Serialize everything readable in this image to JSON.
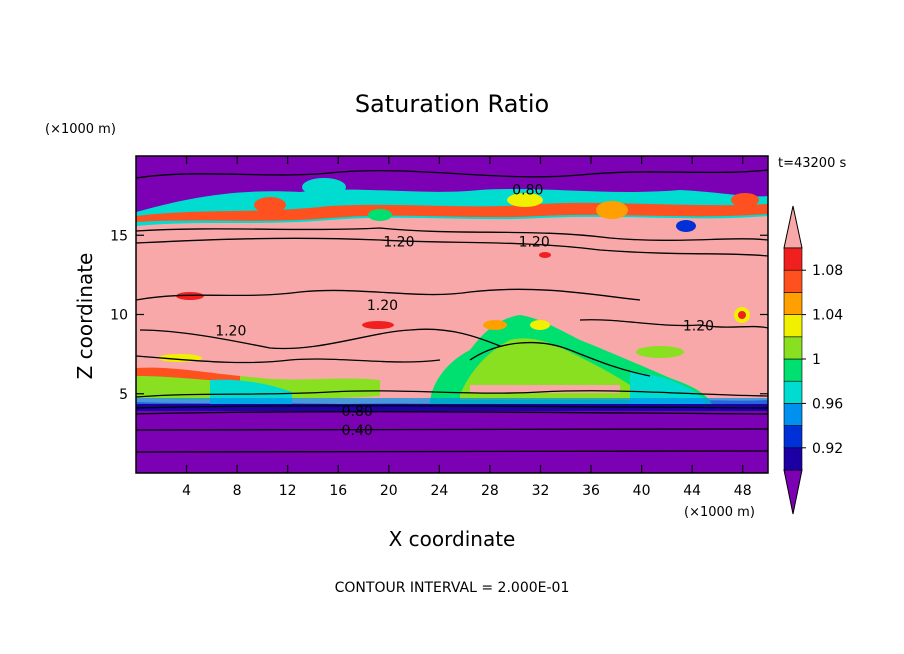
{
  "chart_data": {
    "type": "heatmap",
    "title": "Saturation Ratio",
    "time_label": "t=43200 s",
    "xlabel": "X coordinate",
    "ylabel": "Z coordinate",
    "x_unit": "(×1000 m)",
    "y_unit": "(×1000 m)",
    "xlim": [
      0,
      50
    ],
    "ylim": [
      0,
      20
    ],
    "x_ticks": [
      4,
      8,
      12,
      16,
      20,
      24,
      28,
      32,
      36,
      40,
      44,
      48
    ],
    "y_ticks": [
      5,
      10,
      15
    ],
    "colorbar": {
      "labels": [
        "1.08",
        "1.04",
        "1",
        "0.96",
        "0.92"
      ],
      "levels": [
        0.9,
        0.92,
        0.94,
        0.96,
        0.98,
        1.0,
        1.02,
        1.04,
        1.06,
        1.08,
        1.1
      ],
      "colors": [
        "#7c00b4",
        "#1c00a4",
        "#0030d8",
        "#0090f0",
        "#00dcd0",
        "#00e070",
        "#88e020",
        "#f0f000",
        "#ffa000",
        "#ff5020",
        "#f02020",
        "#f8a8a8"
      ]
    },
    "contour_labels": [
      {
        "text": "0.80",
        "x": 31,
        "z": 17.9
      },
      {
        "text": "1.20",
        "x": 20.8,
        "z": 14.6
      },
      {
        "text": "1.20",
        "x": 31.5,
        "z": 14.6
      },
      {
        "text": "1.20",
        "x": 19.5,
        "z": 10.6
      },
      {
        "text": "1.20",
        "x": 7.5,
        "z": 9.0
      },
      {
        "text": "1.20",
        "x": 44.5,
        "z": 9.3
      },
      {
        "text": "0.80",
        "x": 17.5,
        "z": 3.9
      },
      {
        "text": "0.40",
        "x": 17.5,
        "z": 2.7
      }
    ],
    "footer": "CONTOUR INTERVAL = 2.000E-01"
  }
}
